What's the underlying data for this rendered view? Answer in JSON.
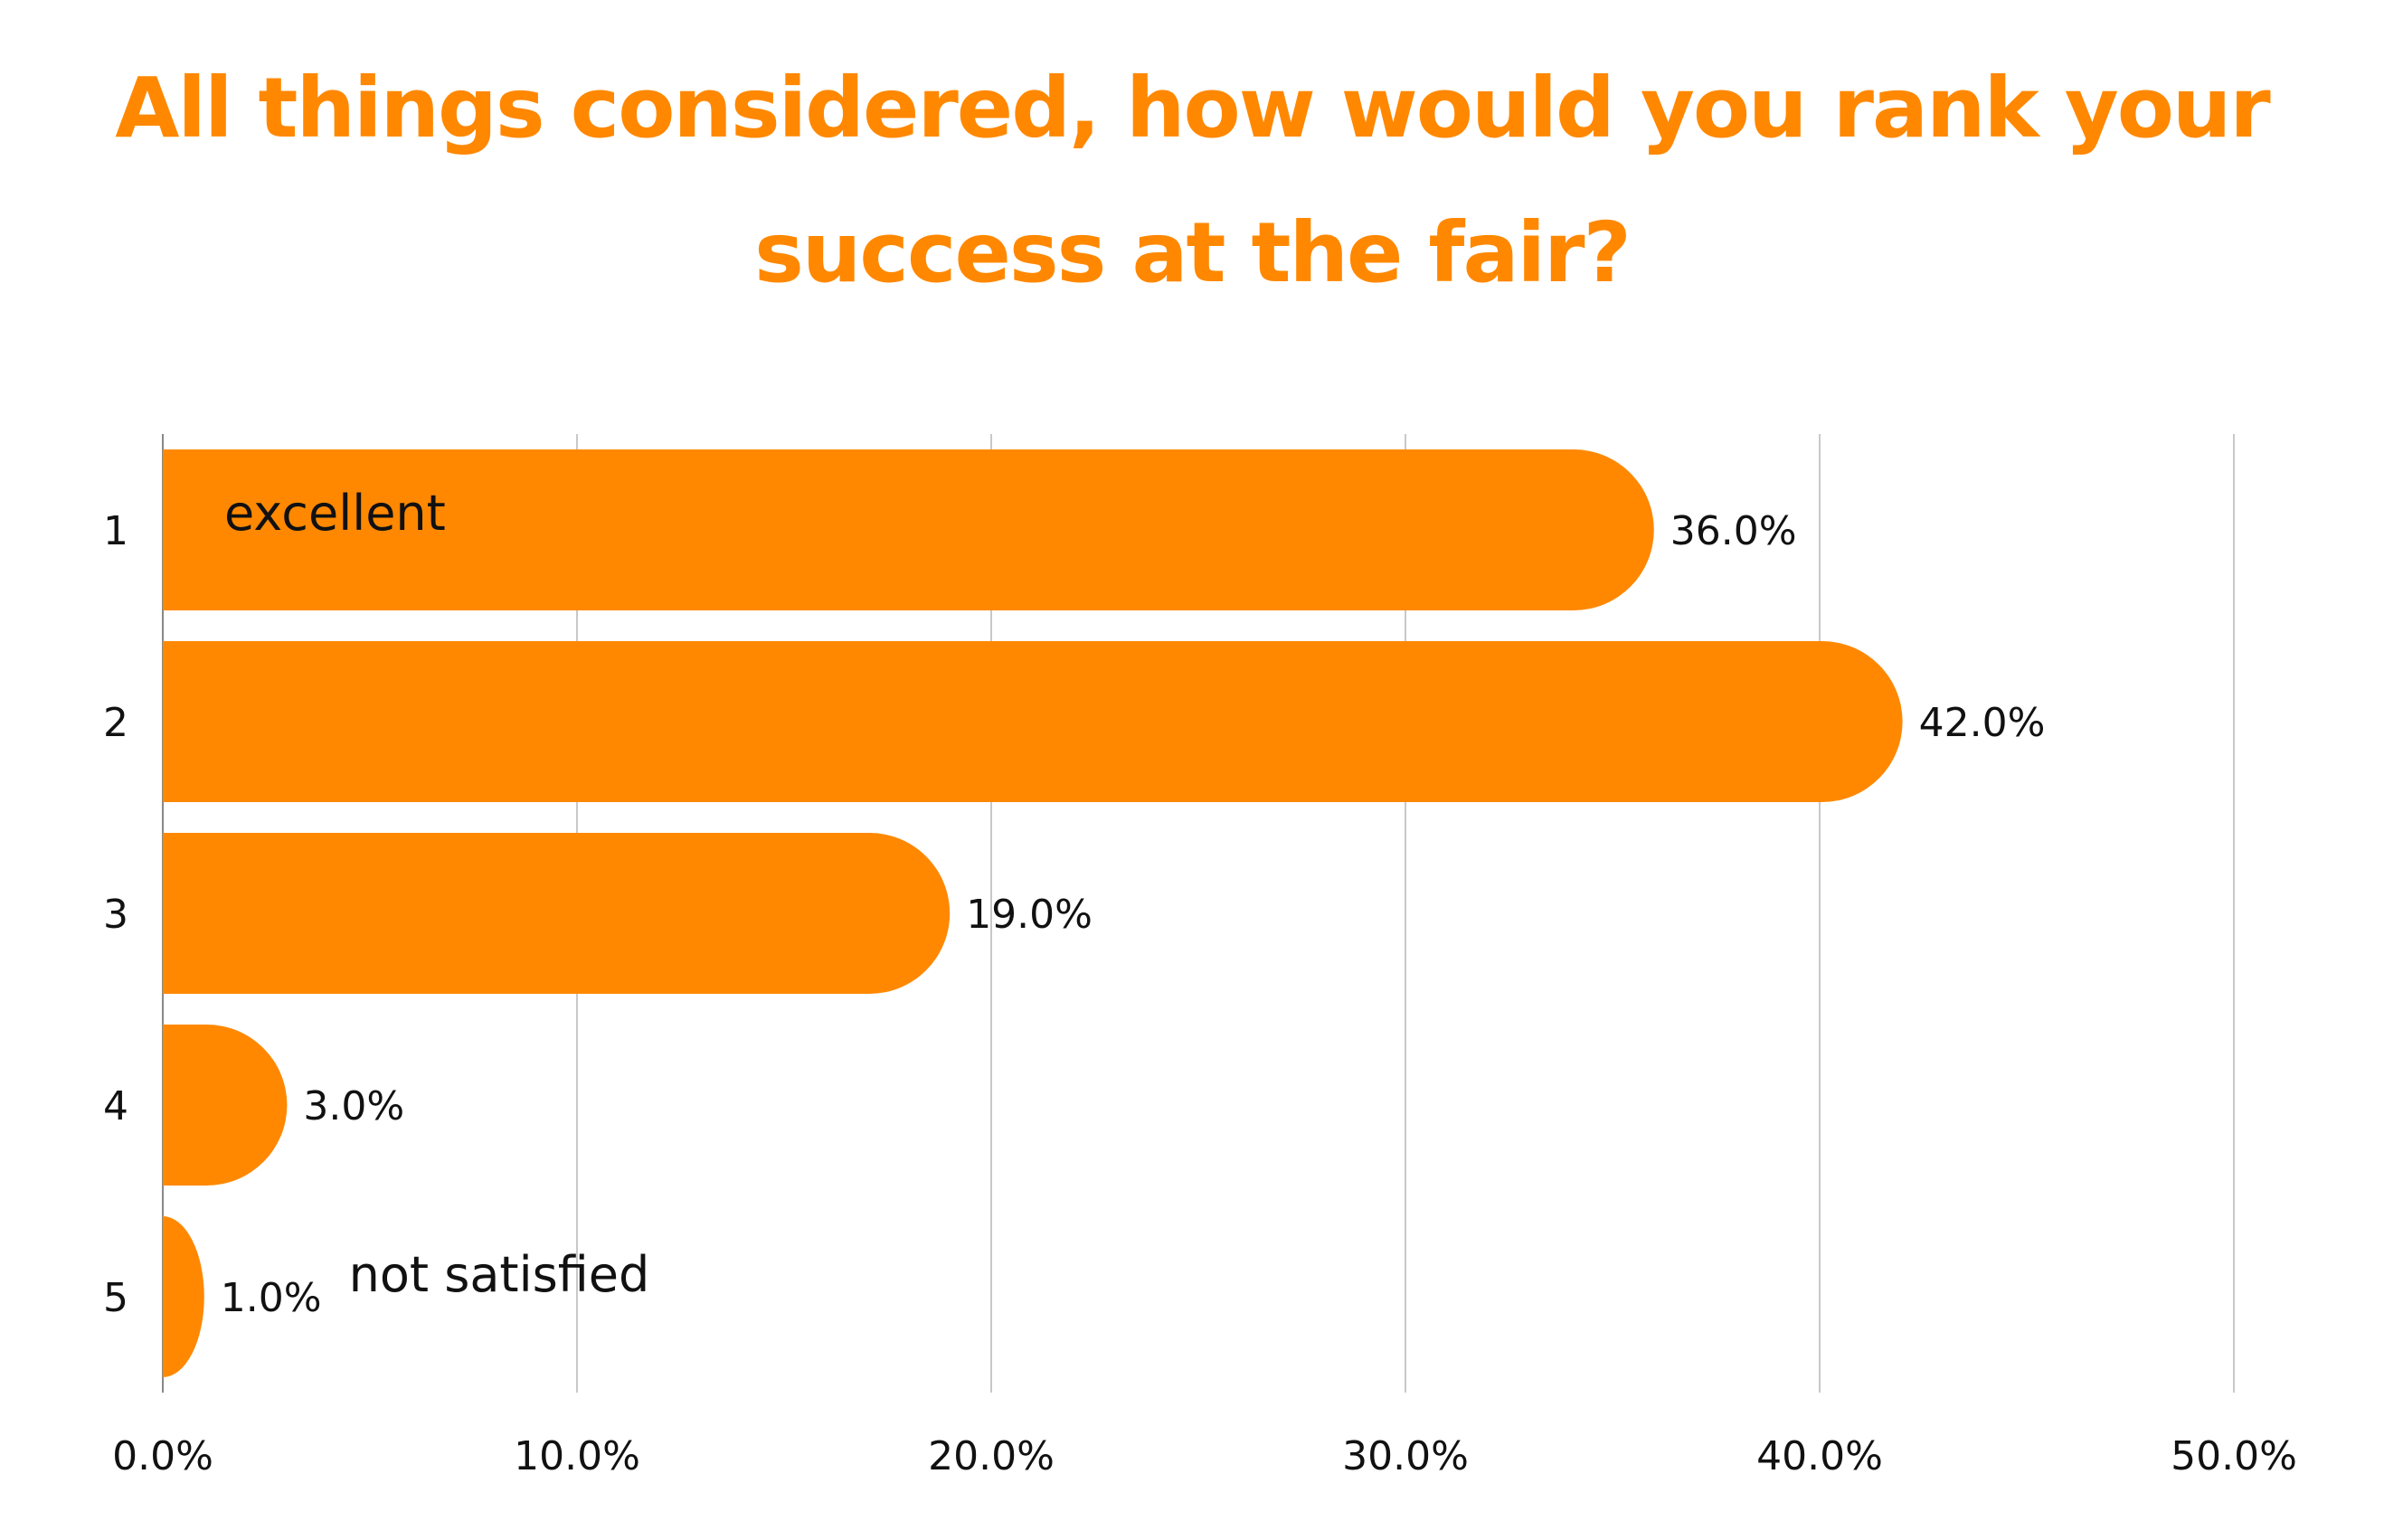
{
  "chart_data": {
    "type": "bar",
    "orientation": "horizontal",
    "title_lines": [
      "All things considered, how would you rank your",
      "success at the fair?"
    ],
    "categories": [
      "1",
      "2",
      "3",
      "4",
      "5"
    ],
    "values": [
      36.0,
      42.0,
      19.0,
      3.0,
      1.0
    ],
    "value_labels": [
      "36.0%",
      "42.0%",
      "19.0%",
      "3.0%",
      "1.0%"
    ],
    "x_ticks": [
      0,
      10,
      20,
      30,
      40,
      50
    ],
    "x_tick_labels": [
      "0.0%",
      "10.0%",
      "20.0%",
      "30.0%",
      "40.0%",
      "50.0%"
    ],
    "xlim": [
      0,
      50
    ],
    "grid": "vertical",
    "legend": "none",
    "bar_color": "#FF8800",
    "annotations": [
      {
        "category": "1",
        "text": "excellent",
        "position": "inside-start"
      },
      {
        "category": "5",
        "text": "not satisfied",
        "position": "after-value-label"
      }
    ]
  }
}
